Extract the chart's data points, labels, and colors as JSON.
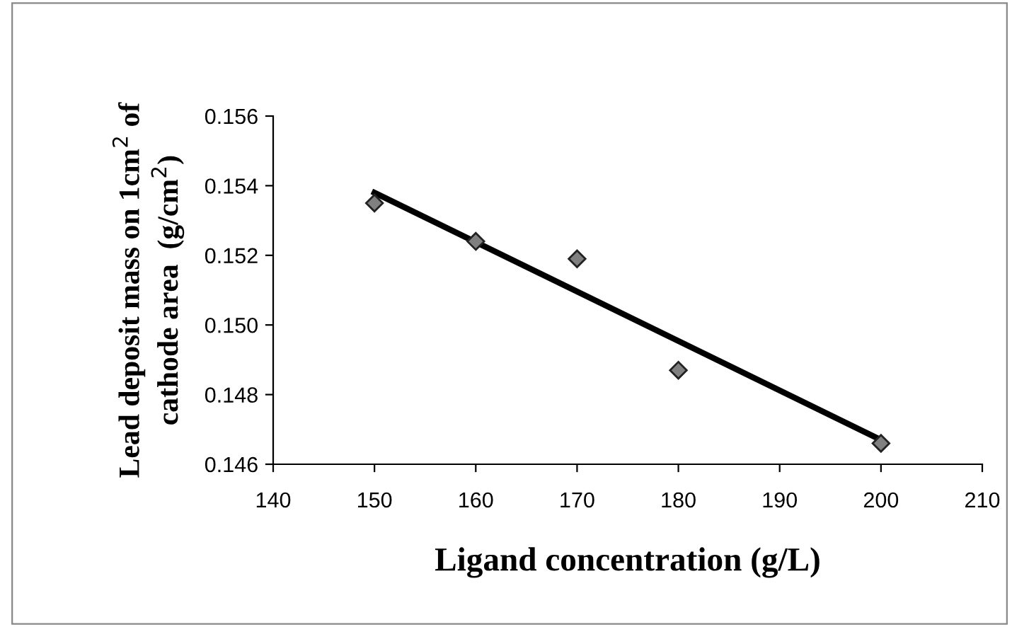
{
  "chart_data": {
    "type": "scatter",
    "xlabel": "Ligand concentration (g/L)",
    "ylabel": "Lead deposit mass on 1cm$^{2}$ of\ncathode area  (g/cm$^{2}$)",
    "x": [
      150,
      160,
      170,
      180,
      200
    ],
    "series": [
      {
        "color": "#808080",
        "marker": "diamond",
        "values": [
          0.1535,
          0.1524,
          0.1519,
          0.1487,
          0.1466
        ]
      },
      {
        "type": "line",
        "color": "#000000",
        "x": [
          150,
          200
        ],
        "values": [
          0.1538,
          0.1467
        ],
        "line_style": "solid"
      }
    ],
    "xlim": [
      140,
      210
    ],
    "xticks": [
      140,
      150,
      160,
      170,
      180,
      190,
      200,
      210
    ],
    "ylim": [
      0.146,
      0.156
    ],
    "yticks": [
      {
        "value": 0.146,
        "label": "0.146"
      },
      {
        "value": 0.148,
        "label": "0.148"
      },
      {
        "value": 0.15,
        "label": "0.150"
      },
      {
        "value": 0.152,
        "label": "0.152"
      },
      {
        "value": 0.154,
        "label": "0.154"
      },
      {
        "value": 0.156,
        "label": "0.156"
      }
    ],
    "grid": false,
    "legend": false
  }
}
